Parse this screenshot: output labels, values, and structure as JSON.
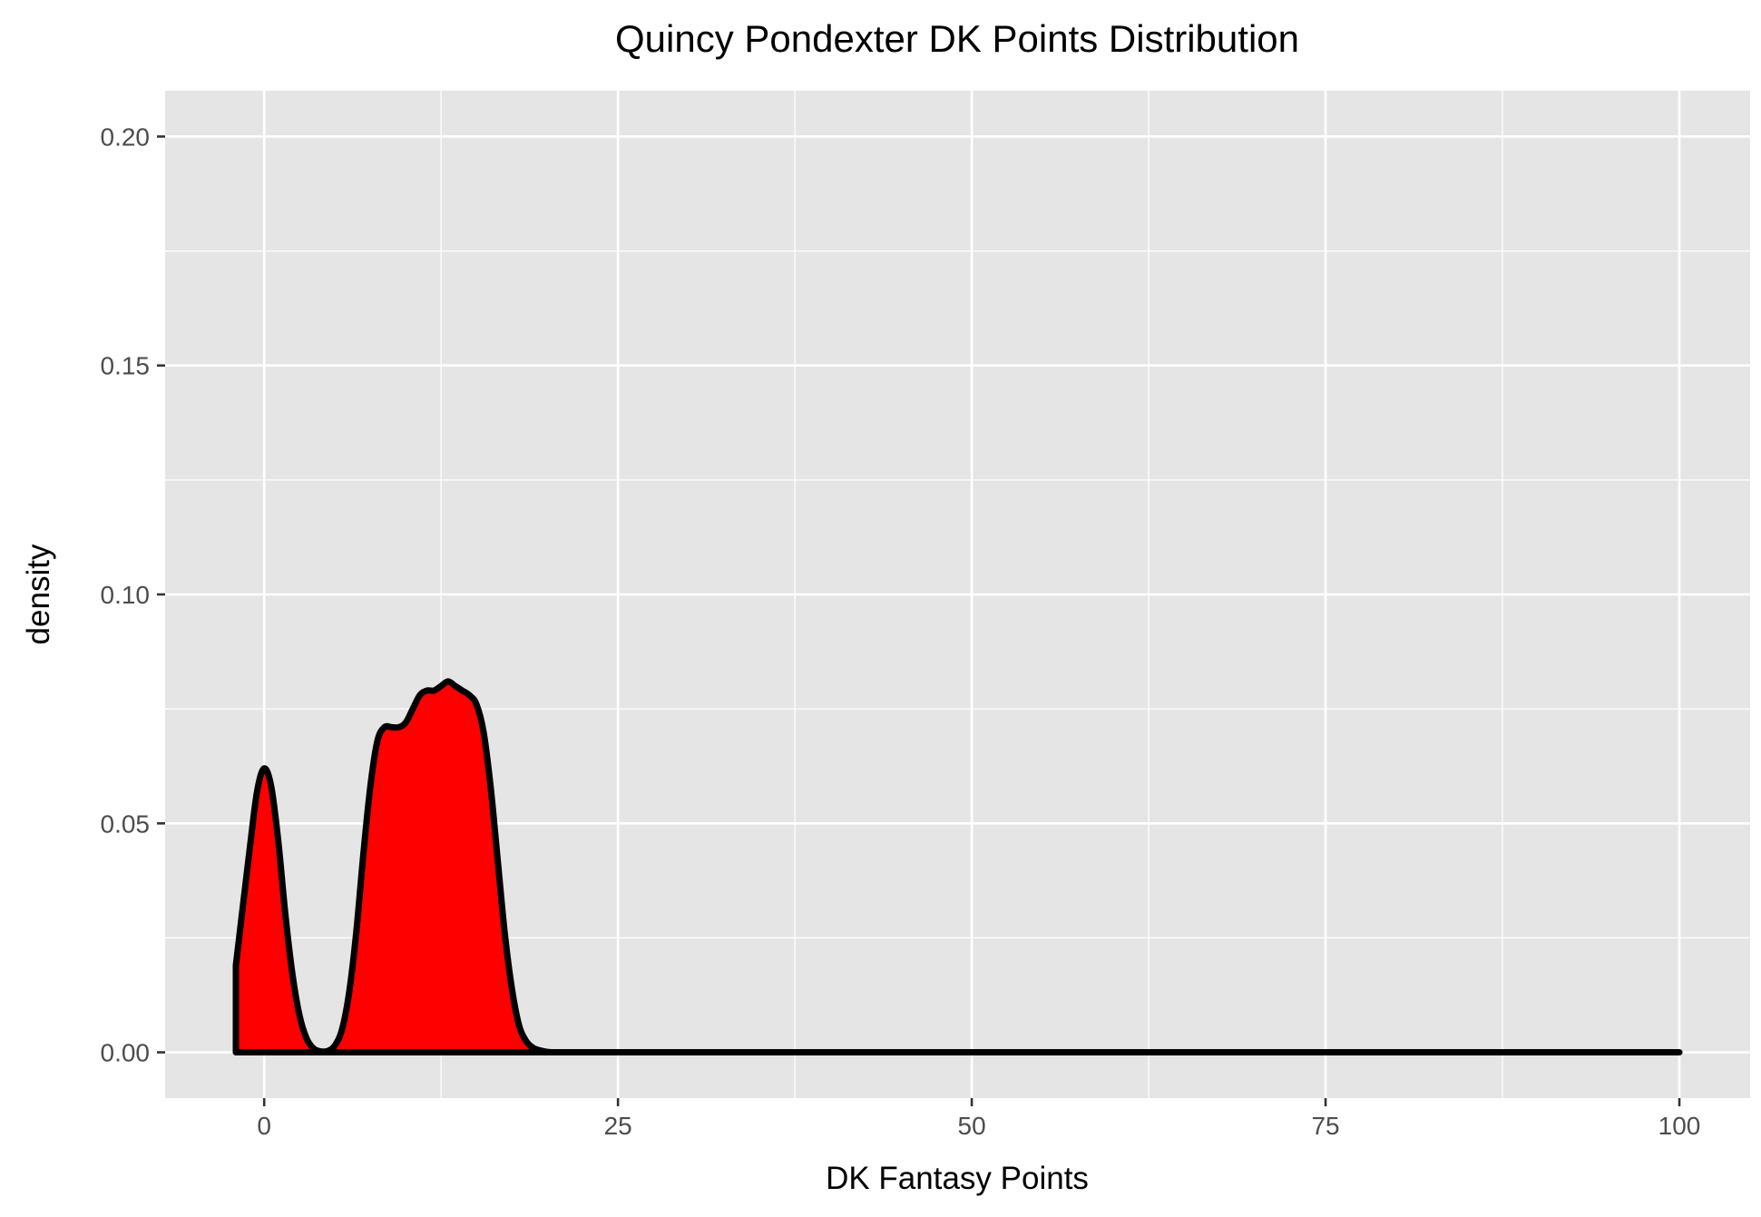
{
  "chart_data": {
    "type": "area",
    "title": "Quincy Pondexter DK Points Distribution",
    "xlabel": "DK Fantasy Points",
    "ylabel": "density",
    "xlim": [
      -7,
      105
    ],
    "ylim": [
      -0.01,
      0.21
    ],
    "x_ticks": [
      0,
      25,
      50,
      75,
      100
    ],
    "x_tick_labels": [
      "0",
      "25",
      "50",
      "75",
      "100"
    ],
    "y_ticks": [
      0,
      0.05,
      0.1,
      0.15,
      0.2
    ],
    "y_tick_labels": [
      "0.00",
      "0.05",
      "0.10",
      "0.15",
      "0.20"
    ],
    "grid": true,
    "legend": "none",
    "fill_color": "#ff0000",
    "line_color": "#000000",
    "panel_color": "#e5e5e5",
    "grid_color": "#ffffff",
    "series": [
      {
        "x": [
          -2,
          -1,
          -0.5,
          0,
          0.5,
          1,
          1.5,
          2,
          2.5,
          3,
          3.5,
          4,
          4.5,
          5,
          5.5,
          6,
          6.5,
          7,
          7.5,
          8,
          8.5,
          9,
          9.5,
          10,
          10.5,
          11,
          11.5,
          12,
          12.5,
          13,
          13.5,
          14,
          14.5,
          15,
          15.5,
          16,
          16.5,
          17,
          17.5,
          18,
          18.5,
          19,
          19.5,
          20,
          20.5,
          21,
          22,
          25,
          50,
          75,
          100
        ],
        "y": [
          0.019,
          0.045,
          0.057,
          0.062,
          0.058,
          0.046,
          0.03,
          0.017,
          0.008,
          0.003,
          0.0008,
          0.0002,
          0.0003,
          0.0015,
          0.005,
          0.013,
          0.026,
          0.043,
          0.058,
          0.068,
          0.071,
          0.071,
          0.071,
          0.072,
          0.075,
          0.078,
          0.079,
          0.079,
          0.08,
          0.081,
          0.08,
          0.079,
          0.078,
          0.076,
          0.07,
          0.058,
          0.042,
          0.026,
          0.014,
          0.006,
          0.0025,
          0.001,
          0.0004,
          0.0001,
          0,
          0,
          0,
          0,
          0,
          0,
          0
        ]
      }
    ]
  }
}
